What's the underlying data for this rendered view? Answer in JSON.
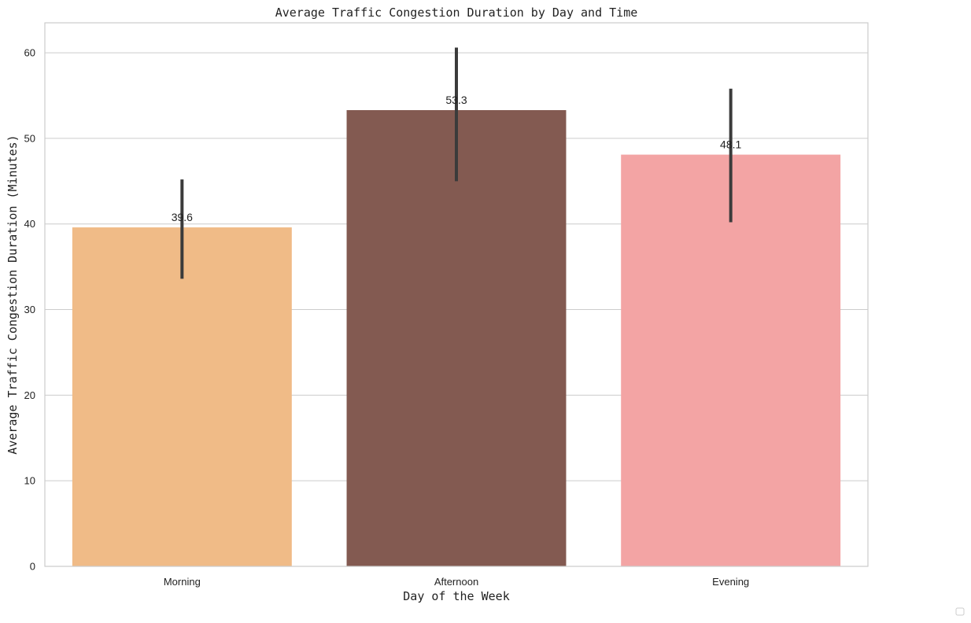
{
  "chart_data": {
    "type": "bar",
    "title": "Average Traffic Congestion Duration by Day and Time",
    "xlabel": "Day of the Week",
    "ylabel": "Average Traffic Congestion Duration (Minutes)",
    "categories": [
      "Morning",
      "Afternoon",
      "Evening"
    ],
    "values": [
      39.6,
      53.3,
      48.1
    ],
    "value_labels": [
      "39.6",
      "53.3",
      "48.1"
    ],
    "error_low": [
      33.6,
      45.0,
      40.2
    ],
    "error_high": [
      45.2,
      60.6,
      55.8
    ],
    "colors": [
      "#f0bb87",
      "#835a51",
      "#f3a4a4"
    ],
    "ylim": [
      0,
      63.5
    ],
    "yticks": [
      0,
      10,
      20,
      30,
      40,
      50,
      60
    ],
    "ytick_labels": [
      "0",
      "10",
      "20",
      "30",
      "40",
      "50",
      "60"
    ],
    "grid": "horizontal",
    "legend": "bottom-right (empty)"
  }
}
